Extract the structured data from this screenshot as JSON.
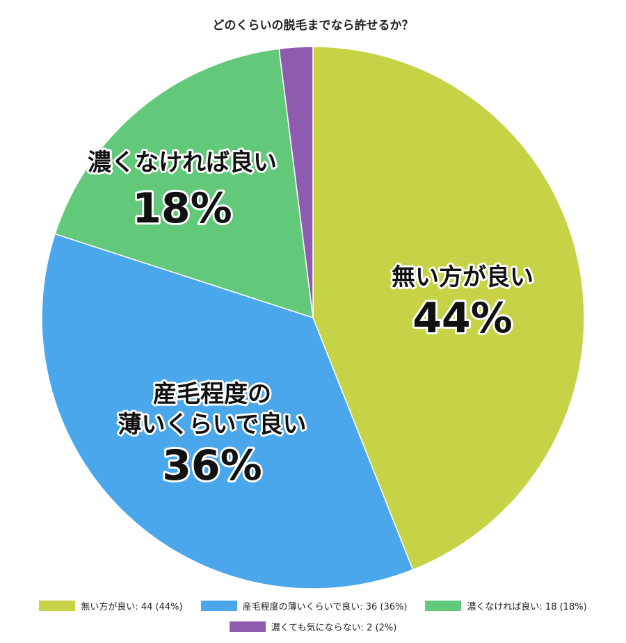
{
  "chart_data": {
    "type": "pie",
    "title": "どのくらいの脱毛までなら許せるか？",
    "start": "top",
    "direction": "clockwise",
    "slices": [
      {
        "label": "無い方が良い",
        "label_lines": [
          "無い方が良い"
        ],
        "value": 44,
        "percent": "44%",
        "color": "#c6d346",
        "legend": "無い方が良い: 44 (44%)"
      },
      {
        "label": "産毛程度の薄いくらいで良い",
        "label_lines": [
          "産毛程度の",
          "薄いくらいで良い"
        ],
        "value": 36,
        "percent": "36%",
        "color": "#4aa7ec",
        "legend": "産毛程度の薄いくらいで良い: 36 (36%)"
      },
      {
        "label": "濃くなければ良い",
        "label_lines": [
          "濃くなければ良い"
        ],
        "value": 18,
        "percent": "18%",
        "color": "#62c87a",
        "legend": "濃くなければ良い: 18 (18%)"
      },
      {
        "label": "濃くても気にならない",
        "label_lines": [],
        "value": 2,
        "percent": "",
        "color": "#8f5bb0",
        "legend": "濃くても気にならない: 2 (2%)"
      }
    ],
    "legend_position": "bottom"
  }
}
